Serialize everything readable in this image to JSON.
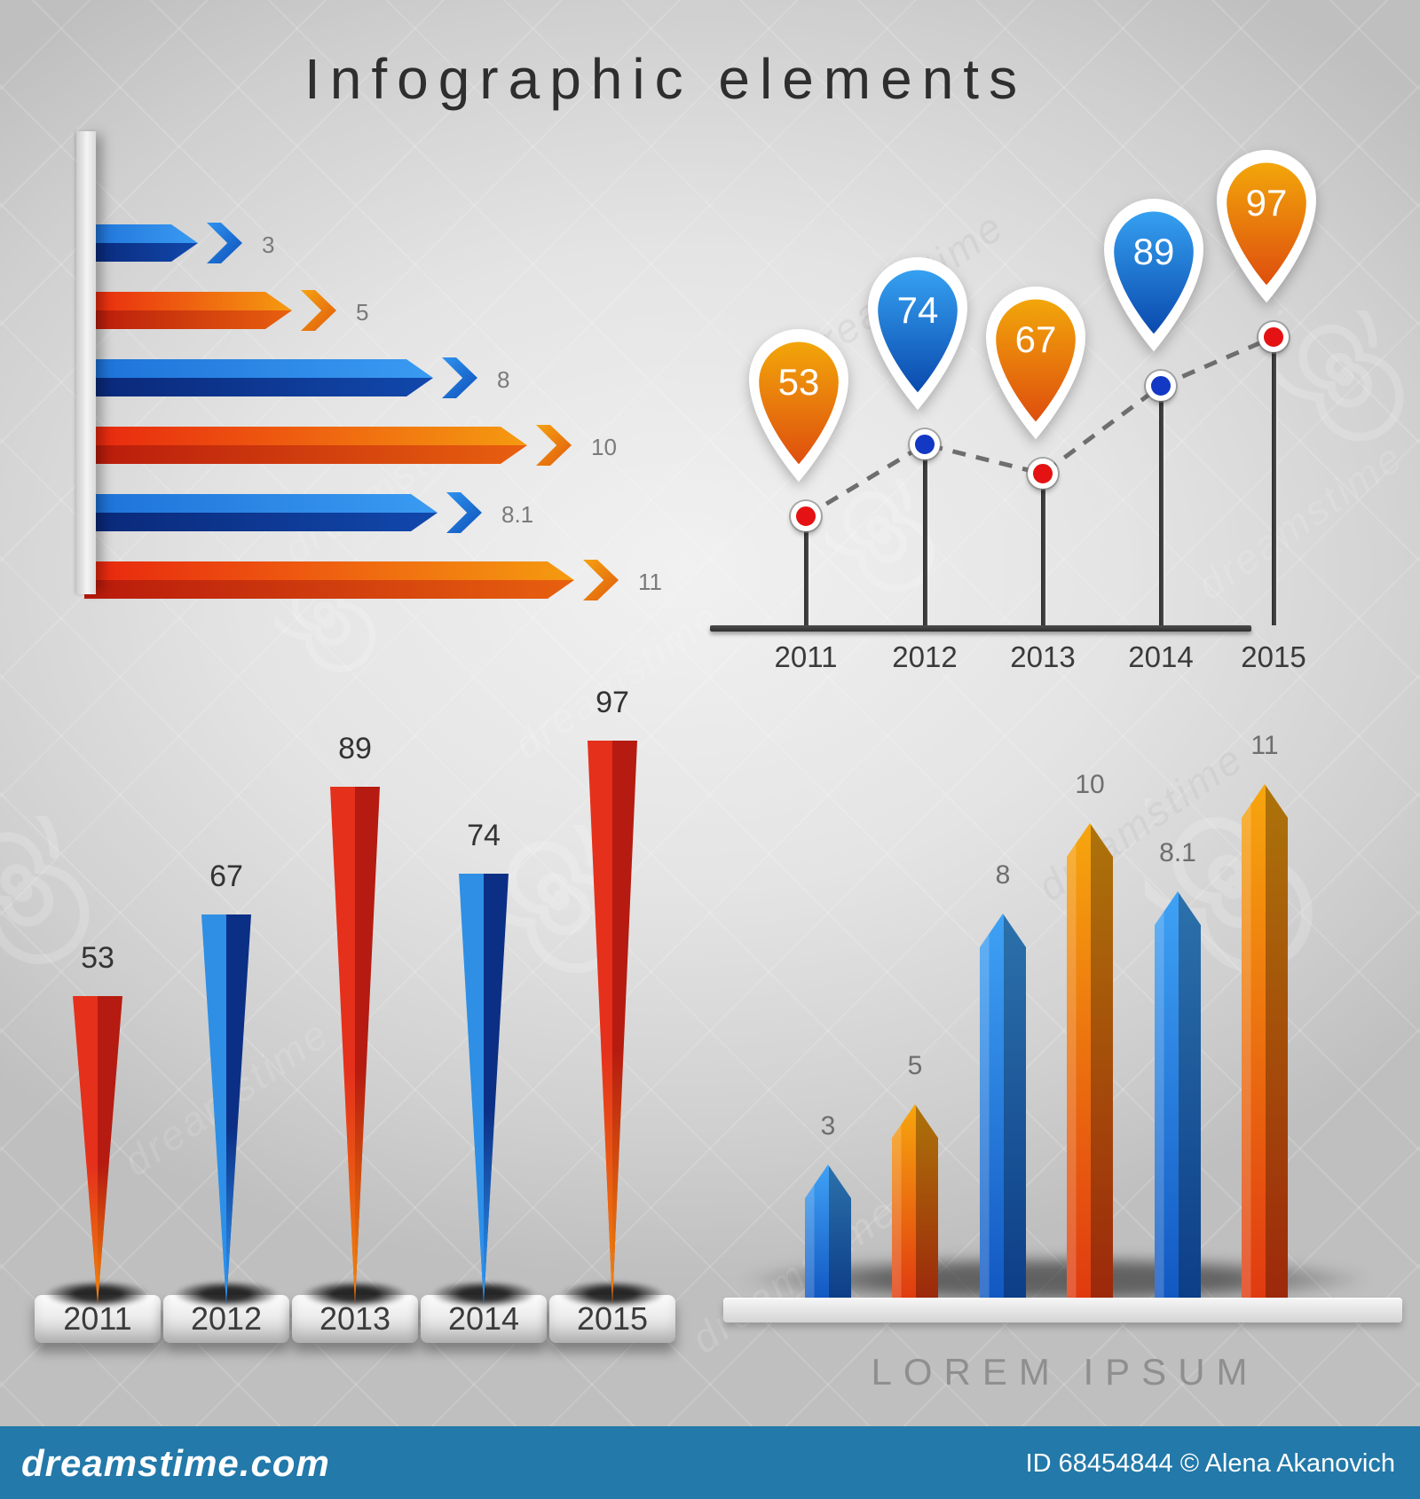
{
  "title": "Infographic elements",
  "watermark": {
    "site": "dreamstime.com",
    "credit": "ID 68454844 © Alena Akanovich",
    "tile": "dreamstime",
    "bar_color": "#2379A9"
  },
  "palette": {
    "blue_top": [
      "#1E72D8",
      "#3A9BF2"
    ],
    "blue_bottom": [
      "#0A2878",
      "#1148AC"
    ],
    "orange_top": [
      "#E8260F",
      "#F59B10"
    ],
    "orange_bottom": [
      "#B81A0C",
      "#E8600F"
    ],
    "chevron_blue": [
      "#2E93F0",
      "#0E4FB8"
    ],
    "chevron_orange": [
      "#F5A212",
      "#E05A0C"
    ],
    "pin_orange": [
      "#F2A60A",
      "#DE4E0E"
    ],
    "pin_blue": [
      "#35A0F0",
      "#0A4AAE"
    ],
    "dot_red": "#E41212",
    "dot_blue": "#1238C4",
    "spike_red": [
      "#E5301C",
      "#B51B10",
      "#EE7D0C"
    ],
    "spike_blue": [
      "#2E8FE5",
      "#0B2F85",
      "#2B90EC"
    ],
    "col_blue": [
      "#3FA2F5",
      "#1258C2"
    ],
    "col_orange": [
      "#F7A60E",
      "#E03A10"
    ],
    "axis": "#3E3E3E",
    "dash_line": "#6E6E6E"
  },
  "chart_data": [
    {
      "id": "arrow-bars",
      "type": "bar",
      "orientation": "horizontal",
      "values": [
        3,
        5,
        8,
        10,
        8.1,
        11
      ],
      "labels": [
        "3",
        "5",
        "8",
        "10",
        "8.1",
        "11"
      ],
      "colors": [
        "blue",
        "orange",
        "blue",
        "orange",
        "blue",
        "orange"
      ]
    },
    {
      "id": "pin-line",
      "type": "line",
      "categories": [
        "2011",
        "2012",
        "2013",
        "2014",
        "2015"
      ],
      "values": [
        53,
        74,
        67,
        89,
        97
      ],
      "labels": [
        "53",
        "74",
        "67",
        "89",
        "97"
      ],
      "pin_colors": [
        "orange",
        "blue",
        "orange",
        "blue",
        "orange"
      ],
      "dot_colors": [
        "red",
        "blue",
        "red",
        "blue",
        "red"
      ],
      "legend_position": "none",
      "grid": false
    },
    {
      "id": "spike-bars",
      "type": "bar",
      "categories": [
        "2011",
        "2012",
        "2013",
        "2014",
        "2015"
      ],
      "values": [
        53,
        67,
        89,
        74,
        97
      ],
      "labels": [
        "53",
        "67",
        "89",
        "74",
        "97"
      ],
      "colors": [
        "red",
        "blue",
        "red",
        "blue",
        "red"
      ]
    },
    {
      "id": "arrow-columns",
      "type": "bar",
      "values": [
        3,
        5,
        8,
        10,
        8.1,
        11
      ],
      "labels": [
        "3",
        "5",
        "8",
        "10",
        "8.1",
        "11"
      ],
      "colors": [
        "blue",
        "orange",
        "blue",
        "orange",
        "blue",
        "orange"
      ],
      "caption": "LOREM IPSUM"
    }
  ]
}
